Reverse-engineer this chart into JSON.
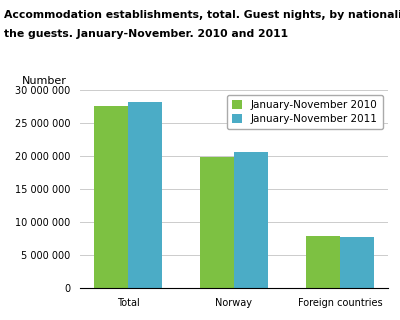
{
  "title_line1": "Accommodation establishments, total. Guest nights, by nationality of",
  "title_line2": "the guests. January-November. 2010 and 2011",
  "ylabel": "Number",
  "categories": [
    "Total",
    "Norway",
    "Foreign countries"
  ],
  "series": [
    {
      "label": "January-November 2010",
      "values": [
        27500000,
        19800000,
        7800000
      ],
      "color": "#7dc142"
    },
    {
      "label": "January-November 2011",
      "values": [
        28200000,
        20600000,
        7750000
      ],
      "color": "#4bacc6"
    }
  ],
  "ylim": [
    0,
    30000000
  ],
  "yticks": [
    0,
    5000000,
    10000000,
    15000000,
    20000000,
    25000000,
    30000000
  ],
  "ytick_labels": [
    "0",
    "5 000 000",
    "10 000 000",
    "15 000 000",
    "20 000 000",
    "25 000 000",
    "30 000 000"
  ],
  "bar_width": 0.32,
  "background_color": "#ffffff",
  "grid_color": "#cccccc",
  "title_fontsize": 7.8,
  "ylabel_fontsize": 8,
  "tick_fontsize": 7,
  "legend_fontsize": 7.5
}
